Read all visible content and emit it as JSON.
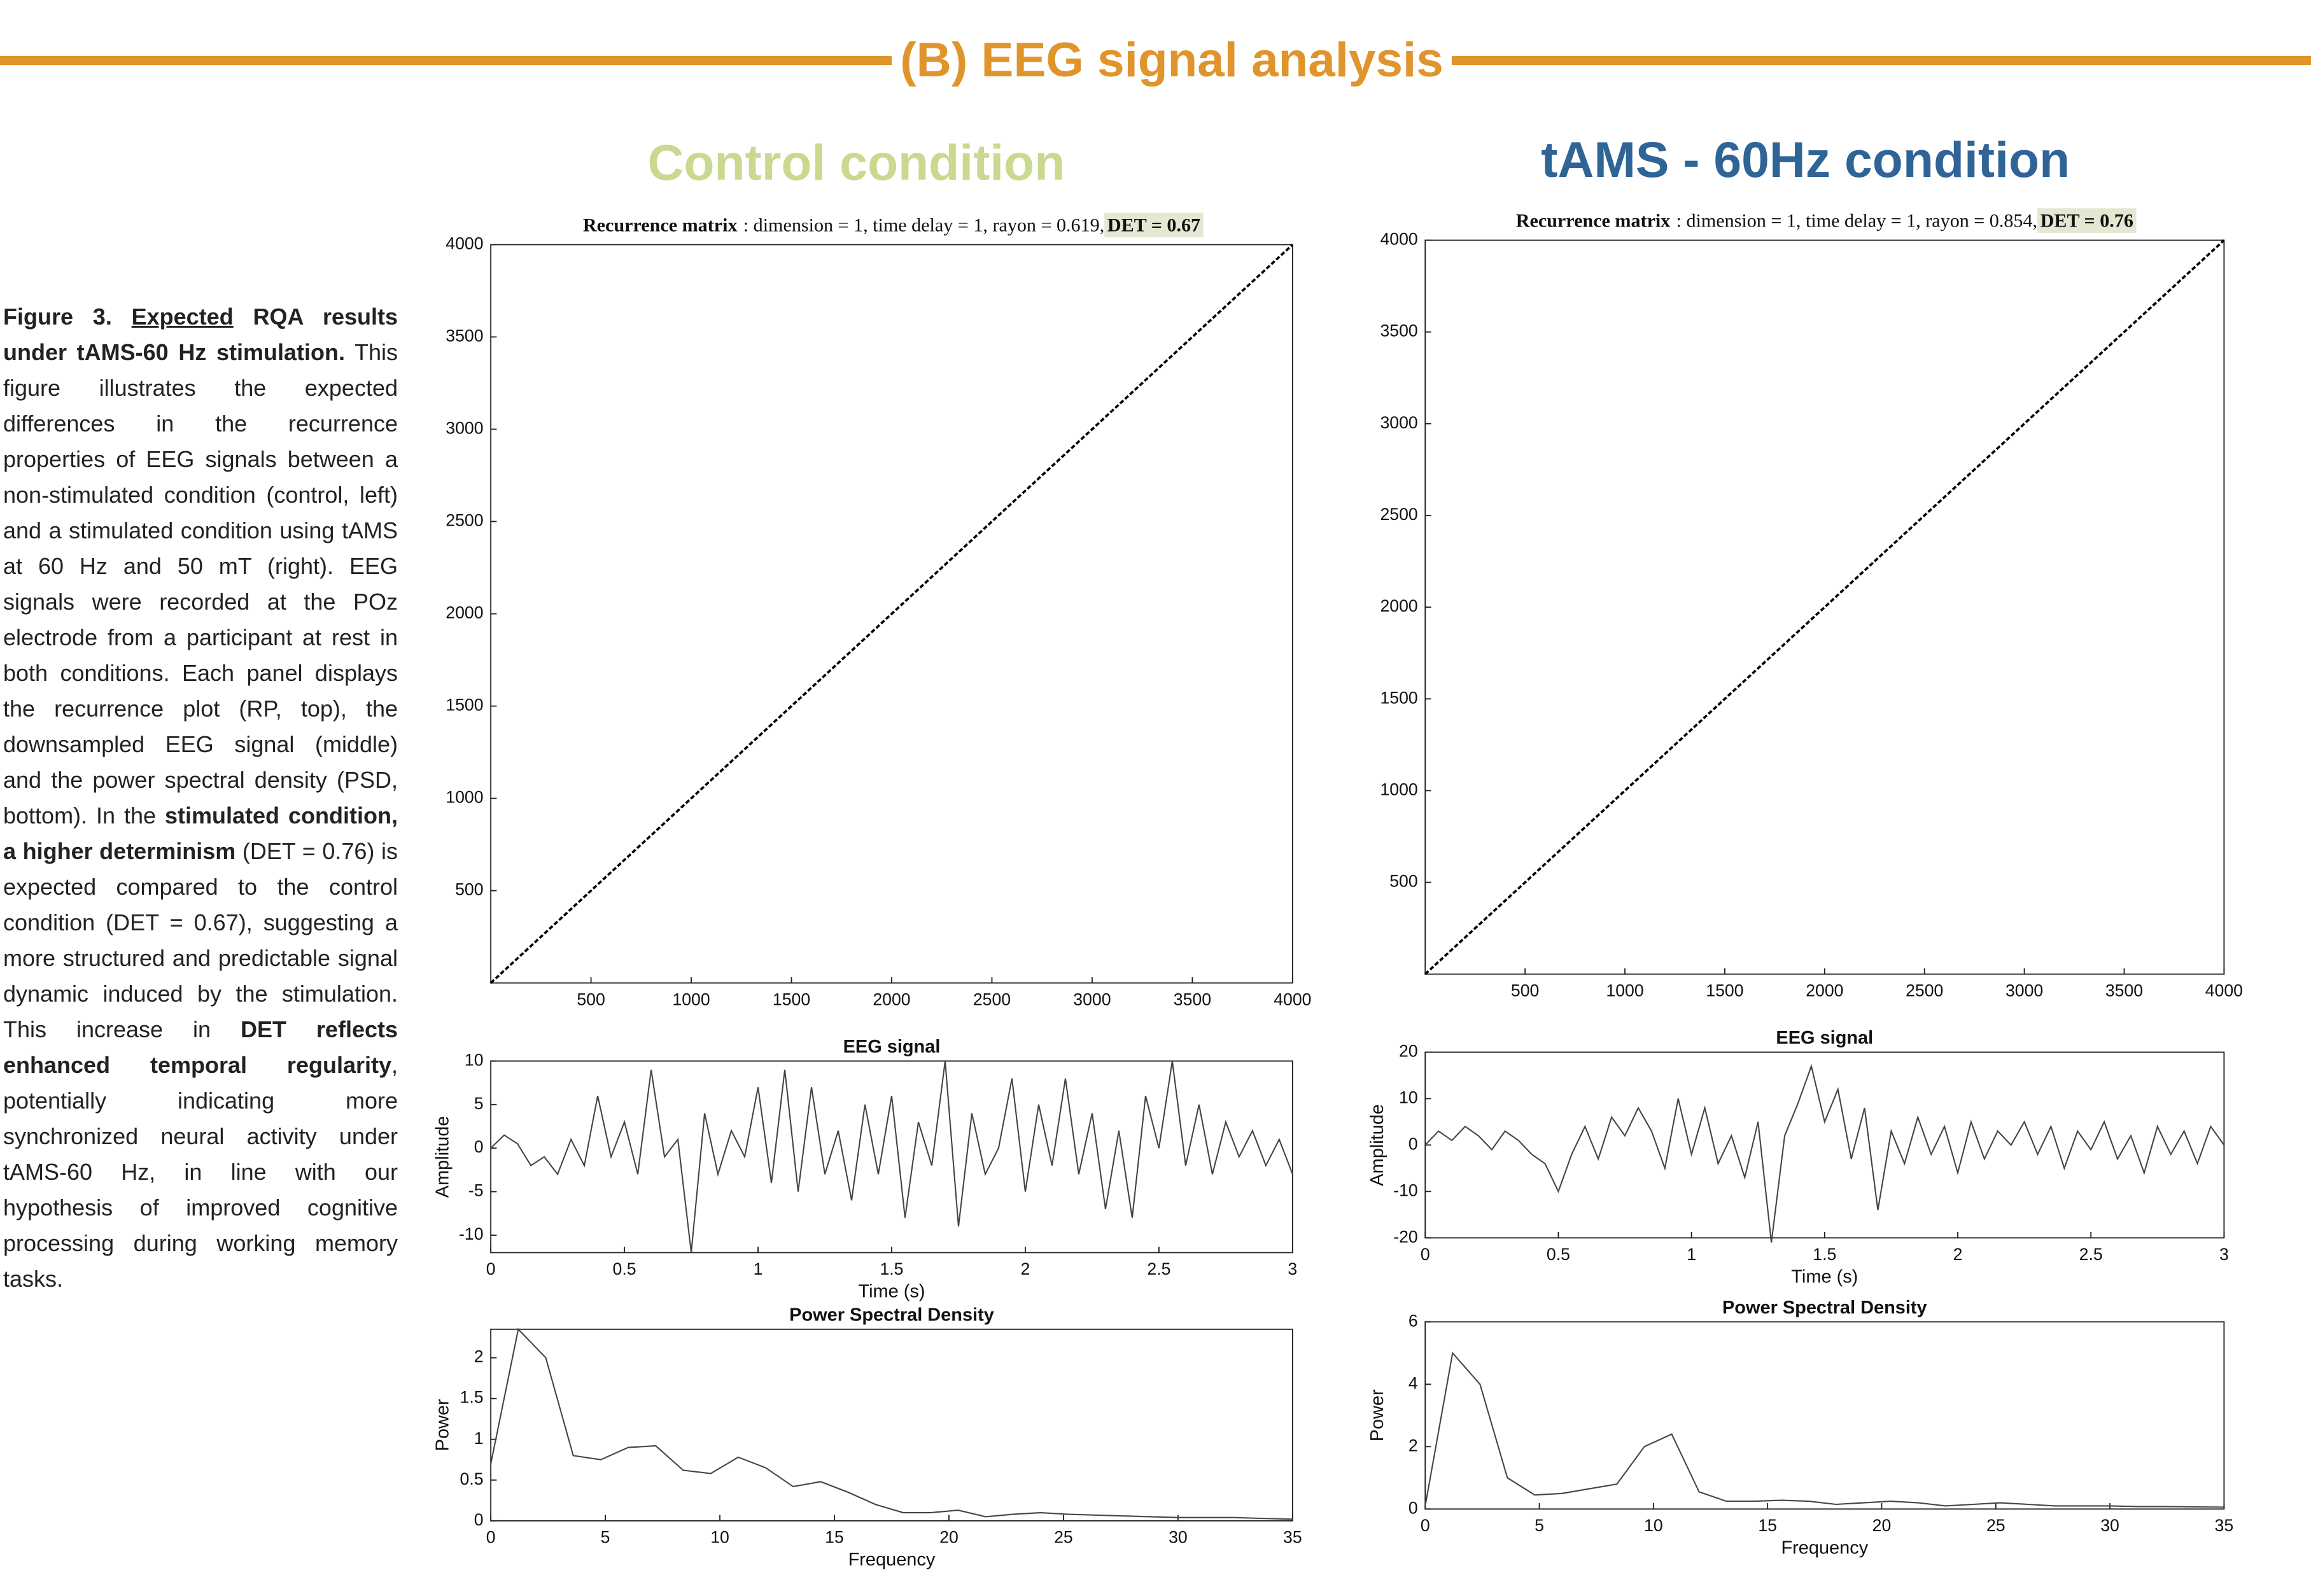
{
  "header": {
    "title": "(B) EEG signal analysis"
  },
  "conditions": [
    "Control condition",
    "tAMS - 60Hz condition"
  ],
  "figure": {
    "caption": [
      "Figure 3.",
      "Expected",
      "RQA results under tAMS-60 Hz stimulation.",
      "This figure illustrates the expected differences in the recurrence properties of EEG signals between a non-stimulated condition (control, left) and a stimulated condition using tAMS at 60 Hz and 50 mT (right). EEG signals were recorded at the POz electrode from a participant at rest in both conditions. Each panel displays the recurrence plot (RP, top), the downsampled EEG signal (middle) and the power spectral density (PSD, bottom). In the",
      "stimulated condition, a higher determinism",
      "(DET = 0.76) is expected compared to the control condition (DET = 0.67), suggesting a more structured and predictable signal dynamic induced by the stimulation. This increase in",
      "DET reflects enhanced temporal regularity",
      ", potentially indicating more synchronized neural activity under tAMS-60 Hz, in line with our hypothesis of improved cognitive processing during working memory tasks."
    ]
  },
  "chart_data": [
    {
      "type": "recurrence",
      "title": "Recurrence matrix",
      "subtitle": ":  dimension = 1,  time delay = 1,  rayon = 0.619,",
      "annotation": "DET = 0.67",
      "xlim": [
        0,
        4000
      ],
      "ylim": [
        0,
        4000
      ],
      "xticks": [
        500,
        1000,
        1500,
        2000,
        2500,
        3000,
        3500,
        4000
      ],
      "yticks": [
        500,
        1000,
        1500,
        2000,
        2500,
        3000,
        3500,
        4000
      ]
    },
    {
      "type": "recurrence",
      "title": "Recurrence matrix",
      "subtitle": ":  dimension = 1,  time delay = 1,  rayon = 0.854,",
      "annotation": "DET = 0.76",
      "xlim": [
        0,
        4000
      ],
      "ylim": [
        0,
        4000
      ],
      "xticks": [
        500,
        1000,
        1500,
        2000,
        2500,
        3000,
        3500,
        4000
      ],
      "yticks": [
        500,
        1000,
        1500,
        2000,
        2500,
        3000,
        3500,
        4000
      ]
    },
    {
      "type": "line",
      "title": "EEG signal",
      "xlabel": "Time (s)",
      "ylabel": "Amplitude",
      "color": "#444444",
      "xlim": [
        0,
        3
      ],
      "ylim": [
        -12,
        10
      ],
      "xticks": [
        0,
        0.5,
        1,
        1.5,
        2,
        2.5,
        3
      ],
      "yticks": [
        -10,
        -5,
        0,
        5,
        10
      ],
      "x": [
        0,
        0.05,
        0.1,
        0.15,
        0.2,
        0.25,
        0.3,
        0.35,
        0.4,
        0.45,
        0.5,
        0.55,
        0.6,
        0.65,
        0.7,
        0.75,
        0.8,
        0.85,
        0.9,
        0.95,
        1,
        1.05,
        1.1,
        1.15,
        1.2,
        1.25,
        1.3,
        1.35,
        1.4,
        1.45,
        1.5,
        1.55,
        1.6,
        1.65,
        1.7,
        1.75,
        1.8,
        1.85,
        1.9,
        1.95,
        2,
        2.05,
        2.1,
        2.15,
        2.2,
        2.25,
        2.3,
        2.35,
        2.4,
        2.45,
        2.5,
        2.55,
        2.6,
        2.65,
        2.7,
        2.75,
        2.8,
        2.85,
        2.9,
        2.95,
        3
      ],
      "values": [
        0,
        1.5,
        0.5,
        -2,
        -1,
        -3,
        1,
        -2,
        6,
        -1,
        3,
        -3,
        9,
        -1,
        1,
        -12,
        4,
        -3,
        2,
        -1,
        7,
        -4,
        9,
        -5,
        7,
        -3,
        2,
        -6,
        5,
        -3,
        6,
        -8,
        3,
        -2,
        10,
        -9,
        4,
        -3,
        0,
        8,
        -5,
        5,
        -2,
        8,
        -3,
        4,
        -7,
        2,
        -8,
        6,
        0,
        10,
        -2,
        5,
        -3,
        3,
        -1,
        2,
        -2,
        1,
        -3
      ]
    },
    {
      "type": "line",
      "title": "EEG signal",
      "xlabel": "Time (s)",
      "ylabel": "Amplitude",
      "color": "#444444",
      "xlim": [
        0,
        3
      ],
      "ylim": [
        -20,
        20
      ],
      "xticks": [
        0,
        0.5,
        1,
        1.5,
        2,
        2.5,
        3
      ],
      "yticks": [
        -20,
        -10,
        0,
        10,
        20
      ],
      "x": [
        0,
        0.05,
        0.1,
        0.15,
        0.2,
        0.25,
        0.3,
        0.35,
        0.4,
        0.45,
        0.5,
        0.55,
        0.6,
        0.65,
        0.7,
        0.75,
        0.8,
        0.85,
        0.9,
        0.95,
        1,
        1.05,
        1.1,
        1.15,
        1.2,
        1.25,
        1.3,
        1.35,
        1.4,
        1.45,
        1.5,
        1.55,
        1.6,
        1.65,
        1.7,
        1.75,
        1.8,
        1.85,
        1.9,
        1.95,
        2,
        2.05,
        2.1,
        2.15,
        2.2,
        2.25,
        2.3,
        2.35,
        2.4,
        2.45,
        2.5,
        2.55,
        2.6,
        2.65,
        2.7,
        2.75,
        2.8,
        2.85,
        2.9,
        2.95,
        3
      ],
      "values": [
        0,
        3,
        1,
        4,
        2,
        -1,
        3,
        1,
        -2,
        -4,
        -10,
        -2,
        4,
        -3,
        6,
        2,
        8,
        3,
        -5,
        10,
        -2,
        8,
        -4,
        2,
        -7,
        5,
        -21,
        2,
        9,
        17,
        5,
        12,
        -3,
        8,
        -14,
        3,
        -4,
        6,
        -2,
        4,
        -6,
        5,
        -3,
        3,
        0,
        5,
        -2,
        4,
        -5,
        3,
        -1,
        5,
        -3,
        2,
        -6,
        4,
        -2,
        3,
        -4,
        4,
        0
      ]
    },
    {
      "type": "line",
      "title": "Power Spectral Density",
      "xlabel": "Frequency",
      "ylabel": "Power",
      "color": "#444444",
      "xlim": [
        0,
        35
      ],
      "ylim": [
        0,
        2.35
      ],
      "xticks": [
        0,
        5,
        10,
        15,
        20,
        25,
        30,
        35
      ],
      "yticks": [
        0,
        0.5,
        1,
        1.5,
        2
      ],
      "x": [
        0,
        1.2,
        2.4,
        3.6,
        4.8,
        6,
        7.2,
        8.4,
        9.6,
        10.8,
        12,
        13.2,
        14.4,
        15.6,
        16.8,
        18,
        19.2,
        20.4,
        21.6,
        22.8,
        24,
        25.2,
        26.4,
        27.6,
        28.8,
        30,
        31.2,
        32.4,
        33.6,
        35
      ],
      "values": [
        0.7,
        2.35,
        2.0,
        0.8,
        0.75,
        0.9,
        0.92,
        0.62,
        0.58,
        0.78,
        0.65,
        0.42,
        0.48,
        0.35,
        0.2,
        0.1,
        0.1,
        0.13,
        0.05,
        0.08,
        0.1,
        0.08,
        0.07,
        0.06,
        0.05,
        0.04,
        0.04,
        0.04,
        0.03,
        0.02
      ]
    },
    {
      "type": "line",
      "title": "Power Spectral Density",
      "xlabel": "Frequency",
      "ylabel": "Power",
      "color": "#444444",
      "xlim": [
        0,
        35
      ],
      "ylim": [
        0,
        6
      ],
      "xticks": [
        0,
        5,
        10,
        15,
        20,
        25,
        30,
        35
      ],
      "yticks": [
        0,
        2,
        4,
        6
      ],
      "x": [
        0,
        1.2,
        2.4,
        3.6,
        4.8,
        6,
        7.2,
        8.4,
        9.6,
        10.8,
        12,
        13.2,
        14.4,
        15.6,
        16.8,
        18,
        19.2,
        20.4,
        21.6,
        22.8,
        24,
        25.2,
        26.4,
        27.6,
        28.8,
        30,
        31.2,
        32.4,
        33.6,
        35
      ],
      "values": [
        0.1,
        5.0,
        4.0,
        1.0,
        0.45,
        0.5,
        0.65,
        0.8,
        2.0,
        2.4,
        0.55,
        0.25,
        0.25,
        0.28,
        0.25,
        0.15,
        0.2,
        0.25,
        0.2,
        0.1,
        0.15,
        0.2,
        0.15,
        0.1,
        0.1,
        0.1,
        0.08,
        0.08,
        0.07,
        0.06
      ]
    }
  ]
}
